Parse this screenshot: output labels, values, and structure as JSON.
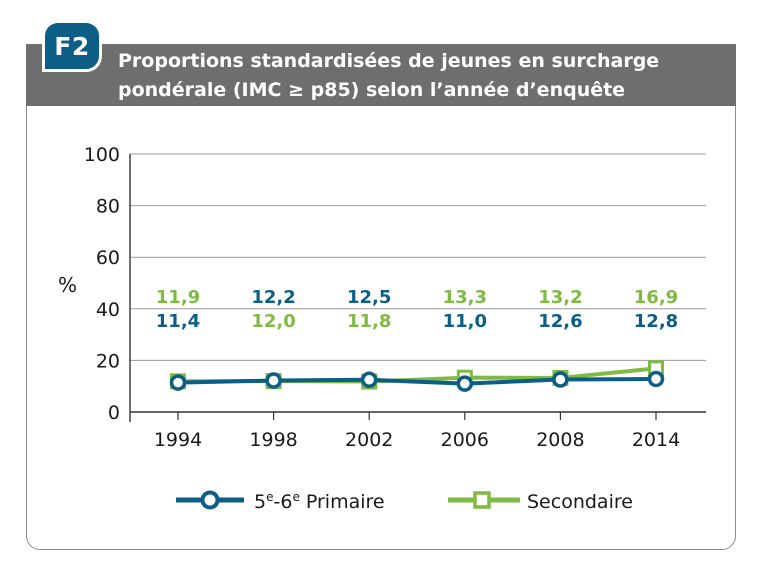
{
  "badge": "F2",
  "title_line1": "Proportions standardisées de jeunes en surcharge",
  "title_line2": "pondérale (IMC ≥ p85) selon l’année d’enquête",
  "colors": {
    "primaire": "#0d5e86",
    "secondaire": "#7fba42",
    "header": "#6e6e6e"
  },
  "chart_data": {
    "type": "line",
    "ylabel": "%",
    "ylim": [
      0,
      100
    ],
    "yticks": [
      0,
      20,
      40,
      60,
      80,
      100
    ],
    "categories": [
      "1994",
      "1998",
      "2002",
      "2006",
      "2008",
      "2014"
    ],
    "series": [
      {
        "name": "5e-6e Primaire",
        "values": [
          11.4,
          12.2,
          12.5,
          11.0,
          12.6,
          12.8
        ],
        "labels": [
          "11,4",
          "12,2",
          "12,5",
          "11,0",
          "12,6",
          "12,8"
        ]
      },
      {
        "name": "Secondaire",
        "values": [
          11.9,
          12.0,
          11.8,
          13.3,
          13.2,
          16.9
        ],
        "labels": [
          "11,9",
          "12,0",
          "11,8",
          "13,3",
          "13,2",
          "16,9"
        ]
      }
    ],
    "grid": true,
    "legend": "bottom"
  }
}
